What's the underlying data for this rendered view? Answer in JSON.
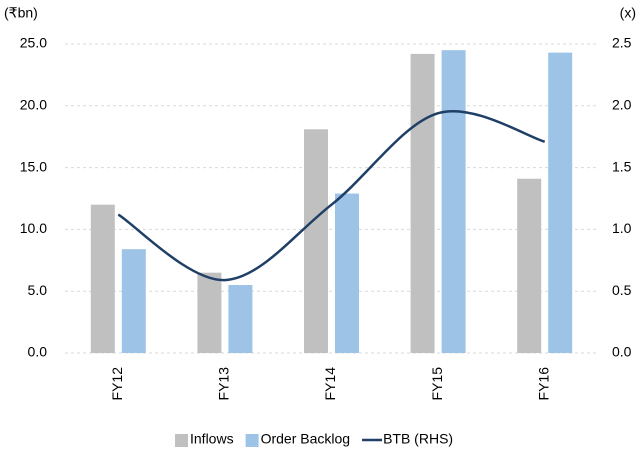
{
  "chart_data": {
    "type": "bar-line",
    "ylabel": "(₹bn)",
    "y2label": "(x)",
    "categories": [
      "FY12",
      "FY13",
      "FY14",
      "FY15",
      "FY16"
    ],
    "series": [
      {
        "name": "Inflows",
        "color": "#c0c0c0",
        "values": [
          12.0,
          6.5,
          18.1,
          24.2,
          14.1
        ]
      },
      {
        "name": "Order Backlog",
        "color": "#9dc3e6",
        "values": [
          8.4,
          5.5,
          12.9,
          24.5,
          24.3
        ]
      },
      {
        "name": "BTB (RHS)",
        "color": "#1f3f66",
        "type": "line",
        "axis": "y2",
        "values": [
          1.12,
          0.59,
          1.2,
          1.94,
          1.71
        ]
      }
    ],
    "ylim": [
      0,
      25
    ],
    "yticks": [
      {
        "value": 0,
        "label": "0.0"
      },
      {
        "value": 5,
        "label": "5.0"
      },
      {
        "value": 10,
        "label": "10.0"
      },
      {
        "value": 15,
        "label": "15.0"
      },
      {
        "value": 20,
        "label": "20.0"
      },
      {
        "value": 25,
        "label": "25.0"
      }
    ],
    "y2lim": [
      0,
      2.5
    ],
    "y2ticks": [
      {
        "value": 0,
        "label": "0.0"
      },
      0.5,
      {
        "value": 1,
        "label": "1.0"
      },
      1.5,
      {
        "value": 2,
        "label": "2.0"
      },
      2.5
    ],
    "grid": true,
    "legend": "bottom"
  }
}
